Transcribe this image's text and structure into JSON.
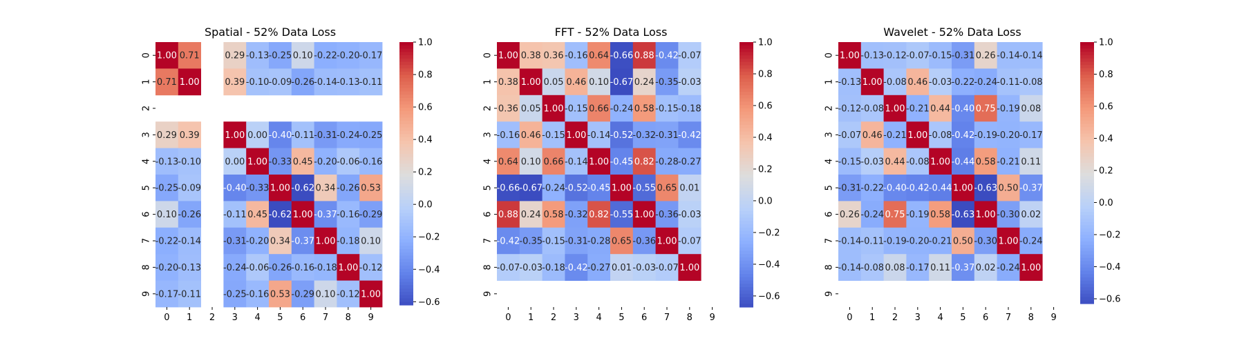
{
  "chart_data": [
    {
      "type": "heatmap",
      "title": "Spatial - 52% Data Loss",
      "xlabel": "",
      "ylabel": "",
      "row_labels": [
        "0",
        "1",
        "2",
        "3",
        "4",
        "5",
        "6",
        "7",
        "8",
        "9"
      ],
      "col_labels": [
        "0",
        "1",
        "2",
        "3",
        "4",
        "5",
        "6",
        "7",
        "8",
        "9"
      ],
      "values": [
        [
          1.0,
          0.71,
          null,
          0.29,
          -0.13,
          -0.25,
          0.1,
          -0.22,
          -0.2,
          -0.17
        ],
        [
          0.71,
          1.0,
          null,
          0.39,
          -0.1,
          -0.09,
          -0.26,
          -0.14,
          -0.13,
          -0.11
        ],
        [
          null,
          null,
          null,
          null,
          null,
          null,
          null,
          null,
          null,
          null
        ],
        [
          0.29,
          0.39,
          null,
          1.0,
          0.0,
          -0.4,
          -0.11,
          -0.31,
          -0.24,
          -0.25
        ],
        [
          -0.13,
          -0.1,
          null,
          0.0,
          1.0,
          -0.33,
          0.45,
          -0.2,
          -0.06,
          -0.16
        ],
        [
          -0.25,
          -0.09,
          null,
          -0.4,
          -0.33,
          1.0,
          -0.62,
          0.34,
          -0.26,
          0.53
        ],
        [
          0.1,
          -0.26,
          null,
          -0.11,
          0.45,
          -0.62,
          1.0,
          -0.37,
          -0.16,
          -0.29
        ],
        [
          -0.22,
          -0.14,
          null,
          -0.31,
          -0.2,
          0.34,
          -0.37,
          1.0,
          -0.18,
          0.1
        ],
        [
          -0.2,
          -0.13,
          null,
          -0.24,
          -0.06,
          -0.26,
          -0.16,
          -0.18,
          1.0,
          -0.12
        ],
        [
          -0.17,
          -0.11,
          null,
          -0.25,
          -0.16,
          0.53,
          -0.29,
          0.1,
          -0.12,
          1.0
        ]
      ],
      "colorbar": {
        "min": -0.62,
        "max": 1.0,
        "ticks": [
          1.0,
          0.8,
          0.6,
          0.4,
          0.2,
          0.0,
          -0.2,
          -0.4,
          -0.6
        ]
      },
      "colormap": "coolwarm"
    },
    {
      "type": "heatmap",
      "title": "FFT - 52% Data Loss",
      "xlabel": "",
      "ylabel": "",
      "row_labels": [
        "0",
        "1",
        "2",
        "3",
        "4",
        "5",
        "6",
        "7",
        "8",
        "9"
      ],
      "col_labels": [
        "0",
        "1",
        "2",
        "3",
        "4",
        "5",
        "6",
        "7",
        "8",
        "9"
      ],
      "values": [
        [
          1.0,
          0.38,
          0.36,
          -0.16,
          0.64,
          -0.66,
          0.88,
          -0.42,
          -0.07,
          null
        ],
        [
          0.38,
          1.0,
          0.05,
          0.46,
          0.1,
          -0.67,
          0.24,
          -0.35,
          -0.03,
          null
        ],
        [
          0.36,
          0.05,
          1.0,
          -0.15,
          0.66,
          -0.24,
          0.58,
          -0.15,
          -0.18,
          null
        ],
        [
          -0.16,
          0.46,
          -0.15,
          1.0,
          -0.14,
          -0.52,
          -0.32,
          -0.31,
          -0.42,
          null
        ],
        [
          0.64,
          0.1,
          0.66,
          -0.14,
          1.0,
          -0.45,
          0.82,
          -0.28,
          -0.27,
          null
        ],
        [
          -0.66,
          -0.67,
          -0.24,
          -0.52,
          -0.45,
          1.0,
          -0.55,
          0.65,
          0.01,
          null
        ],
        [
          0.88,
          0.24,
          0.58,
          -0.32,
          0.82,
          -0.55,
          1.0,
          -0.36,
          -0.03,
          null
        ],
        [
          -0.42,
          -0.35,
          -0.15,
          -0.31,
          -0.28,
          0.65,
          -0.36,
          1.0,
          -0.07,
          null
        ],
        [
          -0.07,
          -0.03,
          -0.18,
          -0.42,
          -0.27,
          0.01,
          -0.03,
          -0.07,
          1.0,
          null
        ],
        [
          null,
          null,
          null,
          null,
          null,
          null,
          null,
          null,
          null,
          null
        ]
      ],
      "colorbar": {
        "min": -0.67,
        "max": 1.0,
        "ticks": [
          1.0,
          0.8,
          0.6,
          0.4,
          0.2,
          0.0,
          -0.2,
          -0.4,
          -0.6
        ]
      },
      "colormap": "coolwarm"
    },
    {
      "type": "heatmap",
      "title": "Wavelet - 52% Data Loss",
      "xlabel": "",
      "ylabel": "",
      "row_labels": [
        "0",
        "1",
        "2",
        "3",
        "4",
        "5",
        "6",
        "7",
        "8",
        "9"
      ],
      "col_labels": [
        "0",
        "1",
        "2",
        "3",
        "4",
        "5",
        "6",
        "7",
        "8",
        "9"
      ],
      "values": [
        [
          1.0,
          -0.13,
          -0.12,
          -0.07,
          -0.15,
          -0.31,
          0.26,
          -0.14,
          -0.14,
          null
        ],
        [
          -0.13,
          1.0,
          -0.08,
          0.46,
          -0.03,
          -0.22,
          -0.24,
          -0.11,
          -0.08,
          null
        ],
        [
          -0.12,
          -0.08,
          1.0,
          -0.21,
          0.44,
          -0.4,
          0.75,
          -0.19,
          0.08,
          null
        ],
        [
          -0.07,
          0.46,
          -0.21,
          1.0,
          -0.08,
          -0.42,
          -0.19,
          -0.2,
          -0.17,
          null
        ],
        [
          -0.15,
          -0.03,
          0.44,
          -0.08,
          1.0,
          -0.44,
          0.58,
          -0.21,
          0.11,
          null
        ],
        [
          -0.31,
          -0.22,
          -0.4,
          -0.42,
          -0.44,
          1.0,
          -0.63,
          0.5,
          -0.37,
          null
        ],
        [
          0.26,
          -0.24,
          0.75,
          -0.19,
          0.58,
          -0.63,
          1.0,
          -0.3,
          0.02,
          null
        ],
        [
          -0.14,
          -0.11,
          -0.19,
          -0.2,
          -0.21,
          0.5,
          -0.3,
          1.0,
          -0.24,
          null
        ],
        [
          -0.14,
          -0.08,
          0.08,
          -0.17,
          0.11,
          -0.37,
          0.02,
          -0.24,
          1.0,
          null
        ],
        [
          null,
          null,
          null,
          null,
          null,
          null,
          null,
          null,
          null,
          null
        ]
      ],
      "colorbar": {
        "min": -0.63,
        "max": 1.0,
        "ticks": [
          1.0,
          0.8,
          0.6,
          0.4,
          0.2,
          0.0,
          -0.2,
          -0.4,
          -0.6
        ]
      },
      "colormap": "coolwarm"
    }
  ]
}
